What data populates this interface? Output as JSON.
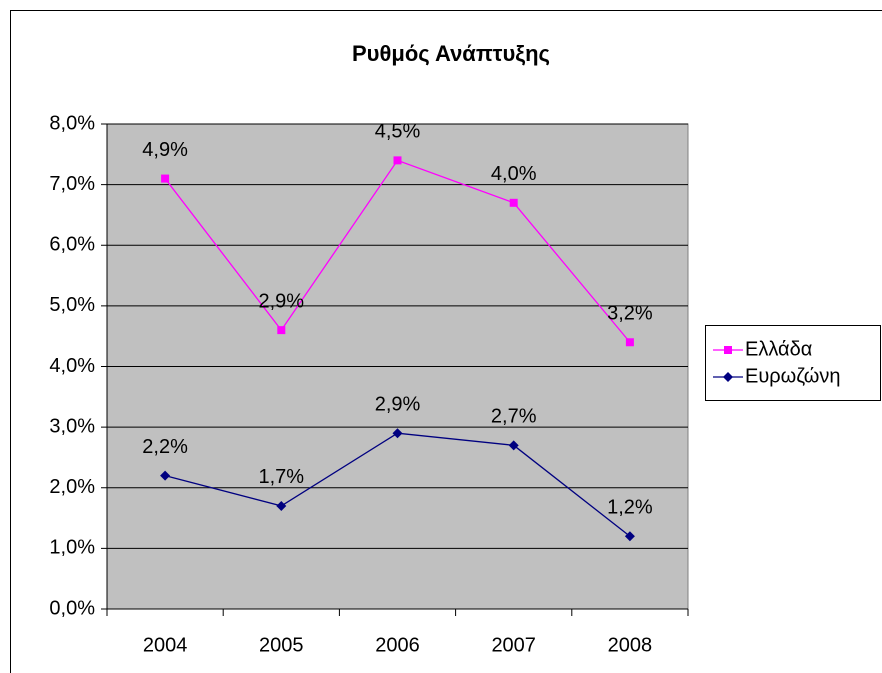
{
  "chart_data": {
    "type": "line",
    "stacked": true,
    "title": "Ρυθμός Ανάπτυξης",
    "categories": [
      "2004",
      "2005",
      "2006",
      "2007",
      "2008"
    ],
    "series": [
      {
        "name": "Ευρωζώνη",
        "color": "#000080",
        "marker": "diamond",
        "values": [
          2.2,
          1.7,
          2.9,
          2.7,
          1.2
        ],
        "value_labels": [
          "2,2%",
          "1,7%",
          "2,9%",
          "2,7%",
          "1,2%"
        ]
      },
      {
        "name": "Ελλάδα",
        "color": "#ff00ff",
        "marker": "square",
        "values": [
          4.9,
          2.9,
          4.5,
          4.0,
          3.2
        ],
        "value_labels": [
          "4,9%",
          "2,9%",
          "4,5%",
          "4,0%",
          "3,2%"
        ]
      }
    ],
    "ylim": [
      0,
      8
    ],
    "yticks": [
      {
        "value": 0,
        "label": "0,0%"
      },
      {
        "value": 1,
        "label": "1,0%"
      },
      {
        "value": 2,
        "label": "2,0%"
      },
      {
        "value": 3,
        "label": "3,0%"
      },
      {
        "value": 4,
        "label": "4,0%"
      },
      {
        "value": 5,
        "label": "5,0%"
      },
      {
        "value": 6,
        "label": "6,0%"
      },
      {
        "value": 7,
        "label": "7,0%"
      },
      {
        "value": 8,
        "label": "8,0%"
      }
    ],
    "grid": true,
    "legend": "right",
    "plot_background": "#c0c0c0"
  }
}
